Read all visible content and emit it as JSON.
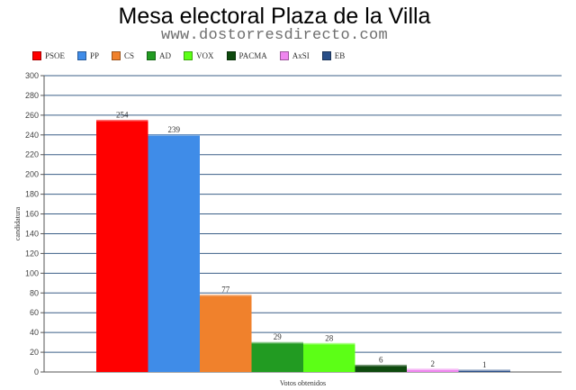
{
  "header": {
    "title": "Mesa electoral Plaza de la Villa",
    "subtitle": "www.dostorresdirecto.com"
  },
  "chart_data": {
    "type": "bar",
    "title": "Mesa electoral Plaza de la Villa",
    "subtitle": "www.dostorresdirecto.com",
    "xlabel": "Votos obtenidos",
    "ylabel": "candidatura",
    "ylim": [
      0,
      300
    ],
    "yticks": [
      "0",
      "20",
      "40",
      "60",
      "80",
      "100",
      "120",
      "140",
      "160",
      "180",
      "200",
      "220",
      "240",
      "260",
      "280",
      "300"
    ],
    "grid": true,
    "legend_position": "top-left",
    "series": [
      {
        "name": "PSOE",
        "value": 254,
        "label": "254",
        "color": "#ff0000"
      },
      {
        "name": "PP",
        "value": 239,
        "label": "239",
        "color": "#3f8ce8"
      },
      {
        "name": "CS",
        "value": 77,
        "label": "77",
        "color": "#f0812c"
      },
      {
        "name": "AD",
        "value": 29,
        "label": "29",
        "color": "#229b22"
      },
      {
        "name": "VOX",
        "value": 28,
        "label": "28",
        "color": "#5cff16"
      },
      {
        "name": "PACMA",
        "value": 6,
        "label": "6",
        "color": "#0e4a0e"
      },
      {
        "name": "AxSI",
        "value": 2,
        "label": "2",
        "color": "#ef86ef"
      },
      {
        "name": "EB",
        "value": 1,
        "label": "1",
        "color": "#2a4f88"
      }
    ]
  }
}
